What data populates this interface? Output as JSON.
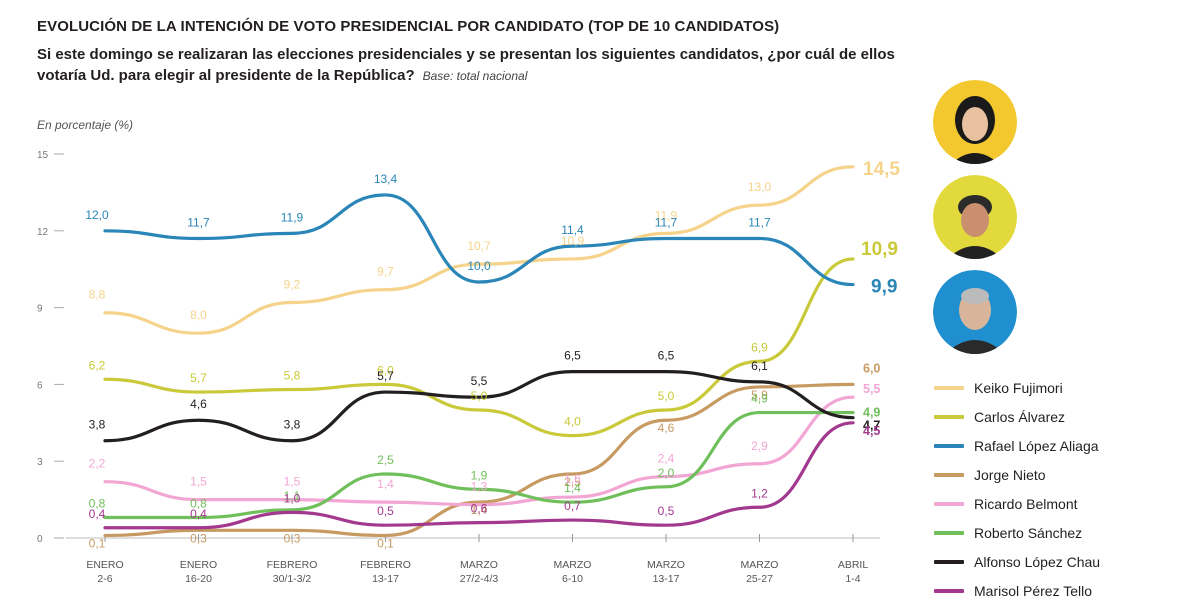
{
  "title": "EVOLUCIÓN DE LA INTENCIÓN DE VOTO PRESIDENCIAL POR CANDIDATO (TOP DE 10 CANDIDATOS)",
  "subtitle": "Si este domingo se realizaran las elecciones presidenciales y se presentan los siguientes candidatos, ¿por cuál de ellos votaría Ud. para elegir al presidente de la República?",
  "base": "Base: total nacional",
  "unit_label": "En porcentaje (%)",
  "colors": {
    "keiko": "#f5d38a",
    "carlos": "#c9c93a",
    "rafael": "#2a86b8",
    "jorge": "#c79a62",
    "ricardo": "#f2a6d4",
    "roberto": "#6fbf5a",
    "alfonso": "#231f20",
    "marisol": "#a3388f",
    "avatar_ring": "#f2c82e",
    "avatar_ring2": "#e2da3c",
    "avatar_ring3": "#1f8fd0"
  },
  "chart_data": {
    "type": "line",
    "title": "EVOLUCIÓN DE LA INTENCIÓN DE VOTO PRESIDENCIAL POR CANDIDATO (TOP DE 10 CANDIDATOS)",
    "ylabel": "En porcentaje (%)",
    "ylim": [
      0,
      15
    ],
    "yticks": [
      "0",
      "3",
      "6",
      "9",
      "12",
      "15"
    ],
    "categories": [
      {
        "top": "ENERO",
        "bottom": "2-6"
      },
      {
        "top": "ENERO",
        "bottom": "16-20"
      },
      {
        "top": "FEBRERO",
        "bottom": "30/1-3/2"
      },
      {
        "top": "FEBRERO",
        "bottom": "13-17"
      },
      {
        "top": "MARZO",
        "bottom": "27/2-4/3"
      },
      {
        "top": "MARZO",
        "bottom": "6-10"
      },
      {
        "top": "MARZO",
        "bottom": "13-17"
      },
      {
        "top": "MARZO",
        "bottom": "25-27"
      },
      {
        "top": "ABRIL",
        "bottom": "1-4"
      }
    ],
    "series": [
      {
        "key": "keiko",
        "name": "Keiko Fujimori",
        "values": [
          8.8,
          8.0,
          9.2,
          9.7,
          10.7,
          10.9,
          11.9,
          13.0,
          14.5
        ],
        "labels": [
          "8,8",
          "8,0",
          "9,2",
          "9,7",
          "10,7",
          "10,9",
          "11,9",
          "13,0",
          "14,5"
        ]
      },
      {
        "key": "carlos",
        "name": "Carlos Álvarez",
        "values": [
          6.2,
          5.7,
          5.8,
          6.0,
          5.0,
          4.0,
          5.0,
          6.9,
          10.9
        ],
        "labels": [
          "6,2",
          "5,7",
          "5,8",
          "6,0",
          "5,0",
          "4,0",
          "5,0",
          "6,9",
          "10,9"
        ]
      },
      {
        "key": "rafael",
        "name": "Rafael López Aliaga",
        "values": [
          12.0,
          11.7,
          11.9,
          13.4,
          10.0,
          11.4,
          11.7,
          11.7,
          9.9
        ],
        "labels": [
          "12,0",
          "11,7",
          "11,9",
          "13,4",
          "10,0",
          "11,4",
          "11,7",
          "11,7",
          "9,9"
        ]
      },
      {
        "key": "jorge",
        "name": "Jorge Nieto",
        "values": [
          0.1,
          0.3,
          0.3,
          0.1,
          1.4,
          2.5,
          4.6,
          5.9,
          6.0
        ],
        "labels": [
          "0,1",
          "0,3",
          "0,3",
          "0,1",
          "1,4",
          "2,5",
          "4,6",
          "5,9",
          "6,0"
        ]
      },
      {
        "key": "ricardo",
        "name": "Ricardo Belmont",
        "values": [
          2.2,
          1.5,
          1.5,
          1.4,
          1.3,
          1.6,
          2.4,
          2.9,
          5.5
        ],
        "labels": [
          "2,2",
          "1,5",
          "1,5",
          "1,4",
          "1,3",
          "1,6",
          "2,4",
          "2,9",
          "5,5"
        ]
      },
      {
        "key": "roberto",
        "name": "Roberto Sánchez",
        "values": [
          0.8,
          0.8,
          1.1,
          2.5,
          1.9,
          1.4,
          2.0,
          4.9,
          4.9
        ],
        "labels": [
          "0,8",
          "0,8",
          "1,1",
          "2,5",
          "1,9",
          "1,4",
          "2,0",
          "4,9",
          "4,9"
        ]
      },
      {
        "key": "alfonso",
        "name": "Alfonso López Chau",
        "values": [
          3.8,
          4.6,
          3.8,
          5.7,
          5.5,
          6.5,
          6.5,
          6.1,
          4.7
        ],
        "labels": [
          "3,8",
          "4,6",
          "3,8",
          "5,7",
          "5,5",
          "6,5",
          "6,5",
          "6,1",
          "4,7"
        ]
      },
      {
        "key": "marisol",
        "name": "Marisol Pérez Tello",
        "values": [
          0.4,
          0.4,
          1.0,
          0.5,
          0.6,
          0.7,
          0.5,
          1.2,
          4.5
        ],
        "labels": [
          "0,4",
          "0,4",
          "1,0",
          "0,5",
          "0,6",
          "0,7",
          "0,5",
          "1,2",
          "4,5"
        ]
      }
    ]
  },
  "avatars": [
    {
      "name": "keiko-avatar",
      "ring": "#f2c82e",
      "bg": "#f7d24a"
    },
    {
      "name": "carlos-avatar",
      "ring": "#e2da3c",
      "bg": "#e8e14a"
    },
    {
      "name": "rafael-avatar",
      "ring": "#1f8fd0",
      "bg": "#2a9ad9"
    }
  ]
}
